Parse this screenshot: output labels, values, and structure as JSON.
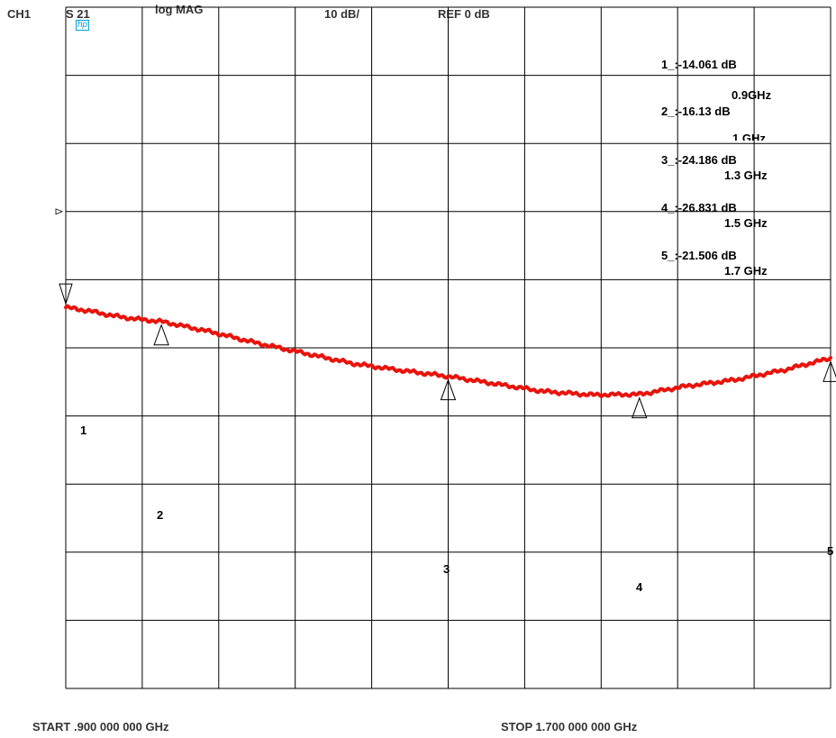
{
  "header": {
    "channel": "CH1",
    "parameter": "S 21",
    "format": "log MAG",
    "scale": "10 dB/",
    "reference": "REF 0 dB",
    "logo": "hp"
  },
  "markers": [
    {
      "num": "1",
      "readout": "1_:-14.061 dB",
      "freq": "0.9GHz"
    },
    {
      "num": "2",
      "readout": "2_:-16.13   dB",
      "freq": "1 GHz"
    },
    {
      "num": "3",
      "readout": "3_:-24.186 dB",
      "freq": "1.3 GHz"
    },
    {
      "num": "4",
      "readout": "4_:-26.831 dB",
      "freq": "1.5 GHz"
    },
    {
      "num": "5",
      "readout": "5_:-21.506 dB",
      "freq": "1.7 GHz"
    }
  ],
  "footer": {
    "start": "START   .900 000 000 GHz",
    "stop": "STOP   1.700 000 000 GHz"
  },
  "chart_data": {
    "type": "line",
    "title": "",
    "xlabel": "",
    "ylabel": "",
    "xlim": [
      0.9,
      1.7
    ],
    "ylim": [
      -70,
      30
    ],
    "grid": true,
    "trace_color": "#e8140c",
    "series": [
      {
        "x": [
          0.9,
          0.925,
          0.95,
          0.975,
          1.0,
          1.05,
          1.1,
          1.15,
          1.2,
          1.25,
          1.3,
          1.35,
          1.4,
          1.45,
          1.5,
          1.55,
          1.6,
          1.65,
          1.7
        ],
        "y": [
          -14.06,
          -14.6,
          -15.3,
          -15.8,
          -16.13,
          -17.6,
          -19.3,
          -20.8,
          -22.3,
          -23.3,
          -24.19,
          -25.3,
          -26.4,
          -26.9,
          -26.83,
          -25.6,
          -24.7,
          -23.3,
          -21.51
        ]
      }
    ],
    "marker_points": [
      {
        "x": 0.9,
        "y": -14.061
      },
      {
        "x": 1.0,
        "y": -16.13
      },
      {
        "x": 1.3,
        "y": -24.186
      },
      {
        "x": 1.5,
        "y": -26.831
      },
      {
        "x": 1.7,
        "y": -21.506
      }
    ],
    "reference_level": 0
  }
}
